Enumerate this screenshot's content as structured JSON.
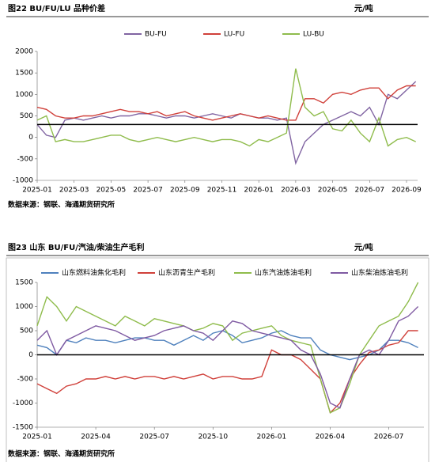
{
  "chart_data": [
    {
      "type": "line",
      "title": "图22  BU/FU/LU 品种价差",
      "unit": "元/吨",
      "source": "数据来源：钢联、海通期货研究所",
      "legend": "top",
      "reference_line": 300,
      "x": [
        0,
        0.5,
        1,
        1.5,
        2,
        2.5,
        3,
        3.5,
        4,
        4.5,
        5,
        5.5,
        6,
        6.5,
        7,
        7.5,
        8,
        8.5,
        9,
        9.5,
        10,
        10.5,
        11,
        11.5,
        12,
        12.5,
        13,
        13.5,
        14,
        14.5,
        15,
        15.5,
        16,
        16.5,
        17,
        17.5,
        18,
        18.5,
        19,
        19.5,
        20,
        20.5
      ],
      "xlim": [
        0,
        20.6
      ],
      "xticks": [
        {
          "value": 0,
          "label": "2025-01"
        },
        {
          "value": 2,
          "label": "2025-03"
        },
        {
          "value": 4,
          "label": "2025-05"
        },
        {
          "value": 6,
          "label": "2025-07"
        },
        {
          "value": 8,
          "label": "2025-09"
        },
        {
          "value": 10,
          "label": "2025-11"
        },
        {
          "value": 12,
          "label": "2026-01"
        },
        {
          "value": 14,
          "label": "2026-03"
        },
        {
          "value": 16,
          "label": "2026-05"
        },
        {
          "value": 18,
          "label": "2026-07"
        },
        {
          "value": 20,
          "label": "2026-09"
        }
      ],
      "ylim": [
        -1000,
        2000
      ],
      "yticks": [
        -1000,
        -500,
        0,
        500,
        1000,
        1500,
        2000
      ],
      "series": [
        {
          "name": "BU-FU",
          "color": "#8064a2",
          "values": [
            300,
            50,
            0,
            400,
            450,
            400,
            450,
            500,
            450,
            500,
            500,
            550,
            550,
            500,
            450,
            500,
            500,
            450,
            500,
            550,
            500,
            450,
            550,
            500,
            450,
            450,
            400,
            450,
            -600,
            -100,
            100,
            300,
            400,
            500,
            600,
            500,
            700,
            300,
            1000,
            900,
            1100,
            1300
          ]
        },
        {
          "name": "LU-FU",
          "color": "#d0403a",
          "values": [
            700,
            650,
            500,
            450,
            450,
            500,
            500,
            550,
            600,
            650,
            600,
            600,
            550,
            600,
            500,
            550,
            600,
            500,
            450,
            400,
            450,
            500,
            550,
            500,
            450,
            500,
            450,
            400,
            400,
            900,
            900,
            800,
            1000,
            1050,
            1000,
            1100,
            1150,
            1150,
            900,
            1100,
            1200,
            1200
          ]
        },
        {
          "name": "LU-BU",
          "color": "#8fbc4c",
          "values": [
            400,
            500,
            -100,
            -50,
            -100,
            -100,
            -50,
            0,
            50,
            50,
            -50,
            -100,
            -50,
            0,
            -50,
            -100,
            -50,
            0,
            -50,
            -100,
            -50,
            -50,
            -100,
            -200,
            -50,
            -100,
            0,
            100,
            1600,
            700,
            500,
            600,
            200,
            150,
            400,
            100,
            -100,
            450,
            -200,
            -50,
            0,
            -100
          ]
        }
      ]
    },
    {
      "type": "line",
      "title": "图23  山东 BU/FU/汽油/柴油生产毛利",
      "unit": "元/吨",
      "source": "数据来源：钢联、海通期货研究所",
      "legend": "top",
      "reference_line": 0,
      "x": [
        0,
        0.5,
        1,
        1.5,
        2,
        2.5,
        3,
        3.5,
        4,
        4.5,
        5,
        5.5,
        6,
        6.5,
        7,
        7.5,
        8,
        8.5,
        9,
        9.5,
        10,
        10.5,
        11,
        11.5,
        12,
        12.5,
        13,
        13.5,
        14,
        14.5,
        15,
        15.5,
        16,
        16.5,
        17,
        17.5,
        18,
        18.5,
        19,
        19.5
      ],
      "xlim": [
        0,
        19.8
      ],
      "xticks": [
        {
          "value": 0,
          "label": "2025-01"
        },
        {
          "value": 3,
          "label": "2025-04"
        },
        {
          "value": 6,
          "label": "2025-07"
        },
        {
          "value": 9,
          "label": "2025-10"
        },
        {
          "value": 12,
          "label": "2026-01"
        },
        {
          "value": 15,
          "label": "2026-04"
        },
        {
          "value": 18,
          "label": "2026-07"
        }
      ],
      "ylim": [
        -1500,
        1500
      ],
      "yticks": [
        -1500,
        -1000,
        -500,
        0,
        500,
        1000,
        1500
      ],
      "series": [
        {
          "name": "山东燃料油焦化毛利",
          "color": "#4f81bd",
          "values": [
            200,
            150,
            0,
            300,
            250,
            350,
            300,
            300,
            250,
            300,
            350,
            350,
            300,
            300,
            200,
            300,
            400,
            300,
            450,
            500,
            400,
            250,
            300,
            350,
            450,
            500,
            400,
            350,
            350,
            100,
            0,
            -50,
            -100,
            -50,
            0,
            100,
            300,
            300,
            250,
            150
          ]
        },
        {
          "name": "山东沥青生产毛利",
          "color": "#d0403a",
          "values": [
            -600,
            -700,
            -800,
            -650,
            -600,
            -500,
            -500,
            -450,
            -500,
            -450,
            -500,
            -450,
            -450,
            -500,
            -450,
            -500,
            -450,
            -400,
            -500,
            -450,
            -450,
            -500,
            -500,
            -450,
            100,
            0,
            0,
            -100,
            -300,
            -500,
            -1200,
            -1000,
            -500,
            -200,
            50,
            100,
            200,
            250,
            500,
            500
          ]
        },
        {
          "name": "山东汽油炼油毛利",
          "color": "#8fbc4c",
          "values": [
            600,
            1200,
            1000,
            700,
            1000,
            900,
            800,
            700,
            600,
            800,
            700,
            600,
            750,
            700,
            650,
            600,
            500,
            550,
            650,
            600,
            300,
            450,
            500,
            550,
            600,
            400,
            300,
            250,
            200,
            -500,
            -1200,
            -1100,
            -600,
            0,
            300,
            600,
            700,
            800,
            1100,
            1500
          ]
        },
        {
          "name": "山东柴油炼油毛利",
          "color": "#7f5aa2",
          "values": [
            300,
            500,
            0,
            300,
            400,
            500,
            600,
            550,
            500,
            400,
            300,
            350,
            400,
            500,
            550,
            600,
            500,
            450,
            300,
            500,
            700,
            650,
            500,
            450,
            400,
            350,
            300,
            100,
            0,
            -400,
            -1000,
            -1100,
            -500,
            0,
            100,
            0,
            300,
            700,
            800,
            1000
          ]
        }
      ]
    }
  ]
}
